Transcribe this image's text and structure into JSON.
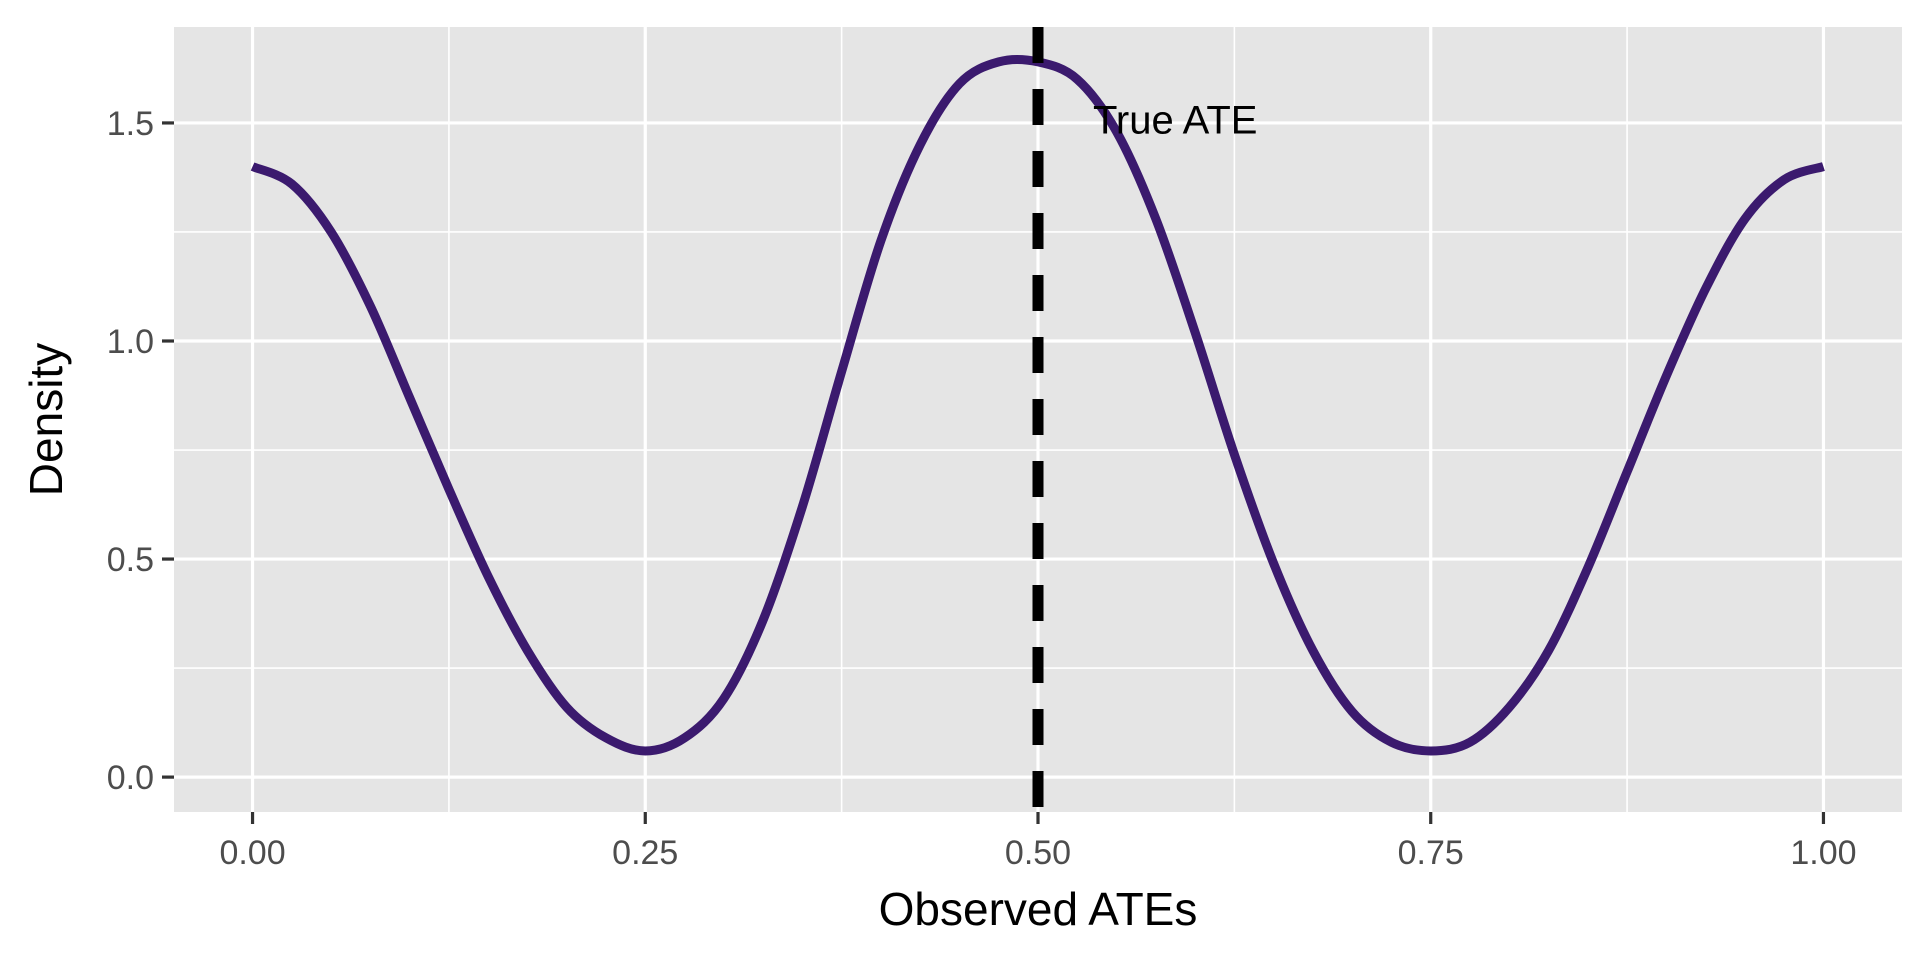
{
  "chart_data": {
    "type": "line",
    "title": "",
    "xlabel": "Observed ATEs",
    "ylabel": "Density",
    "xlim": [
      -0.05,
      1.05
    ],
    "ylim": [
      -0.08,
      1.72
    ],
    "x_ticks": [
      0.0,
      0.25,
      0.5,
      0.75,
      1.0
    ],
    "x_tick_labels": [
      "0.00",
      "0.25",
      "0.50",
      "0.75",
      "1.00"
    ],
    "y_ticks": [
      0.0,
      0.5,
      1.0,
      1.5
    ],
    "y_tick_labels": [
      "0.0",
      "0.5",
      "1.0",
      "1.5"
    ],
    "grid": true,
    "series": [
      {
        "color": "#3b1a6e",
        "x": [
          0.0,
          0.025,
          0.05,
          0.075,
          0.1,
          0.125,
          0.15,
          0.175,
          0.2,
          0.225,
          0.25,
          0.275,
          0.3,
          0.325,
          0.35,
          0.375,
          0.4,
          0.425,
          0.45,
          0.475,
          0.5,
          0.525,
          0.55,
          0.575,
          0.6,
          0.625,
          0.65,
          0.675,
          0.7,
          0.725,
          0.75,
          0.775,
          0.8,
          0.825,
          0.85,
          0.875,
          0.9,
          0.925,
          0.95,
          0.975,
          1.0
        ],
        "y": [
          1.4,
          1.36,
          1.25,
          1.08,
          0.87,
          0.66,
          0.46,
          0.29,
          0.16,
          0.09,
          0.06,
          0.09,
          0.18,
          0.36,
          0.62,
          0.93,
          1.23,
          1.45,
          1.59,
          1.64,
          1.64,
          1.6,
          1.48,
          1.28,
          1.02,
          0.74,
          0.49,
          0.29,
          0.15,
          0.08,
          0.06,
          0.08,
          0.16,
          0.29,
          0.48,
          0.7,
          0.92,
          1.12,
          1.28,
          1.37,
          1.4
        ]
      }
    ],
    "reference_line": {
      "x": 0.5,
      "style": "dashed",
      "color": "#000000"
    },
    "annotations": [
      {
        "text": "True ATE",
        "x": 0.535,
        "y": 1.5
      }
    ],
    "panel_background": "#e5e5e5",
    "grid_color": "#ffffff"
  }
}
